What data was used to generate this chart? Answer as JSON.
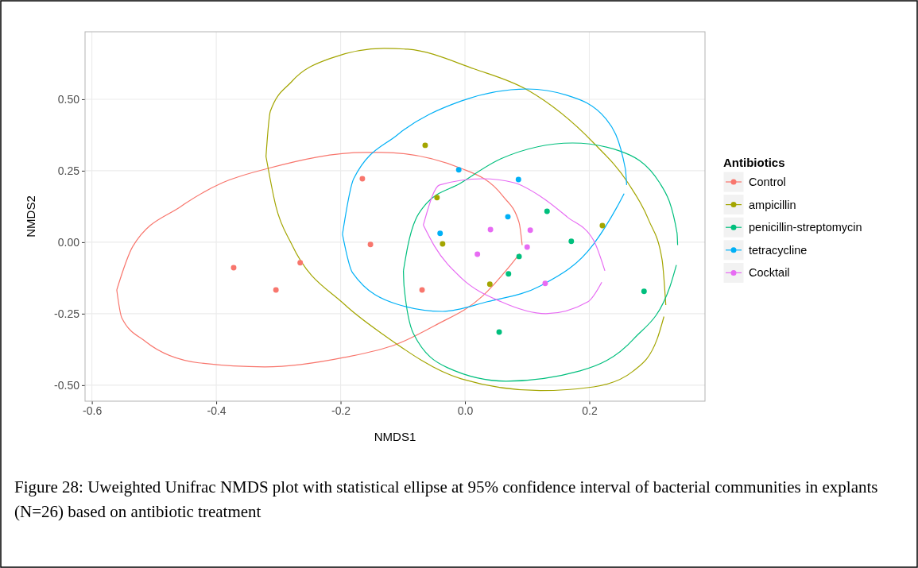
{
  "chart_data": {
    "type": "scatter",
    "xlabel": "NMDS1",
    "ylabel": "NMDS2",
    "legend_title": "Antibiotics",
    "legend": "right",
    "grid": true,
    "marker": "circle",
    "xlim": [
      -0.611,
      0.386
    ],
    "ylim": [
      -0.556,
      0.736
    ],
    "xticks": [
      -0.6,
      -0.4,
      -0.2,
      {
        "value": 0,
        "label": "0.0"
      },
      0.2
    ],
    "yticks": [
      {
        "value": -0.5,
        "label": "-0.50"
      },
      {
        "value": -0.25,
        "label": "-0.25"
      },
      {
        "value": 0,
        "label": "0.00"
      },
      {
        "value": 0.25,
        "label": "0.25"
      },
      {
        "value": 0.5,
        "label": "0.50"
      }
    ],
    "annotations": [
      "Figure 28: Uweighted Unifrac NMDS plot with statistical ellipse at 95% confidence interval of bacterial communities in explants  (N=26) based on antibiotic treatment"
    ],
    "series": [
      {
        "type": "line",
        "marker": "none",
        "color": "#f8766d",
        "x": [
          -0.56,
          -0.534,
          -0.457,
          -0.39,
          -0.317,
          -0.16,
          -0.134,
          -0.006,
          0.061,
          0.087,
          0.092
        ],
        "values": [
          -0.167,
          -0.014,
          0.125,
          0.208,
          0.258,
          0.314,
          0.314,
          0.258,
          0.161,
          0.069,
          -0.01
        ]
      },
      {
        "type": "line",
        "marker": "none",
        "color": "#f8766d",
        "x": [
          -0.56,
          -0.552,
          -0.514,
          -0.428,
          -0.322,
          -0.194,
          -0.109,
          -0.049,
          0.028,
          0.07,
          0.088
        ],
        "values": [
          -0.167,
          -0.264,
          -0.347,
          -0.422,
          -0.436,
          -0.403,
          -0.356,
          -0.292,
          -0.189,
          -0.089,
          -0.04
        ]
      },
      {
        "type": "line",
        "marker": "none",
        "color": "#a3a500",
        "x": [
          -0.32,
          -0.313,
          -0.279,
          -0.215,
          -0.13,
          -0.092,
          0.015,
          0.1,
          0.207,
          0.262,
          0.296,
          0.317,
          0.323
        ],
        "values": [
          0.3,
          0.458,
          0.561,
          0.644,
          0.678,
          0.675,
          0.606,
          0.533,
          0.347,
          0.208,
          0.075,
          -0.061,
          -0.22
        ]
      },
      {
        "type": "line",
        "marker": "none",
        "color": "#a3a500",
        "x": [
          -0.32,
          -0.304,
          -0.279,
          -0.194,
          -0.134,
          -0.006,
          0.121,
          0.207,
          0.271,
          0.309,
          0.32
        ],
        "values": [
          0.3,
          0.125,
          -0.006,
          -0.217,
          -0.319,
          -0.478,
          -0.519,
          -0.506,
          -0.45,
          -0.339,
          -0.26
        ]
      },
      {
        "type": "line",
        "marker": "none",
        "color": "#00bf7d",
        "x": [
          -0.099,
          -0.092,
          -0.066,
          -0.006,
          0.058,
          0.173,
          0.249,
          0.313,
          0.341,
          0.342
        ],
        "values": [
          -0.1,
          -0.014,
          0.125,
          0.208,
          0.292,
          0.347,
          0.319,
          0.208,
          0.033,
          -0.01
        ]
      },
      {
        "type": "line",
        "marker": "none",
        "color": "#00bf7d",
        "x": [
          -0.099,
          -0.098,
          -0.083,
          -0.028,
          0.066,
          0.185,
          0.271,
          0.33,
          0.34
        ],
        "values": [
          -0.1,
          -0.153,
          -0.319,
          -0.439,
          -0.486,
          -0.45,
          -0.339,
          -0.153,
          -0.08
        ]
      },
      {
        "type": "line",
        "marker": "none",
        "color": "#00b0f6",
        "x": [
          -0.197,
          -0.179,
          -0.109,
          -0.006,
          0.1,
          0.164,
          0.227,
          0.258,
          0.26
        ],
        "values": [
          0.028,
          0.222,
          0.375,
          0.494,
          0.536,
          0.514,
          0.431,
          0.256,
          0.2
        ]
      },
      {
        "type": "line",
        "marker": "none",
        "color": "#00b0f6",
        "x": [
          -0.197,
          -0.181,
          -0.109,
          -0.036,
          0.036,
          0.121,
          0.207,
          0.245,
          0.256
        ],
        "values": [
          0.028,
          -0.106,
          -0.217,
          -0.242,
          -0.208,
          -0.153,
          -0.006,
          0.125,
          0.17
        ]
      },
      {
        "type": "line",
        "marker": "none",
        "color": "#e76bf3",
        "x": [
          -0.067,
          -0.041,
          0.028,
          0.079,
          0.121,
          0.164,
          0.207,
          0.225
        ],
        "values": [
          0.06,
          0.2,
          0.222,
          0.208,
          0.161,
          0.089,
          0.006,
          -0.1
        ]
      },
      {
        "type": "line",
        "marker": "none",
        "color": "#e76bf3",
        "x": [
          -0.067,
          -0.049,
          -0.006,
          0.058,
          0.13,
          0.198,
          0.22
        ],
        "values": [
          0.06,
          -0.014,
          -0.125,
          -0.208,
          -0.25,
          -0.208,
          -0.14
        ]
      },
      {
        "name": "Control",
        "color": "#f8766d",
        "x": [
          -0.372,
          -0.304,
          -0.265,
          -0.165,
          -0.152,
          -0.069
        ],
        "values": [
          -0.089,
          -0.167,
          -0.072,
          0.222,
          -0.008,
          -0.167
        ]
      },
      {
        "name": "ampicillin",
        "color": "#a3a500",
        "x": [
          -0.064,
          -0.045,
          -0.036,
          0.04,
          0.221
        ],
        "values": [
          0.339,
          0.156,
          -0.006,
          -0.147,
          0.058
        ]
      },
      {
        "name": "penicillin-streptomycin",
        "color": "#00bf7d",
        "x": [
          0.132,
          0.171,
          0.087,
          0.07,
          0.055,
          0.288
        ],
        "values": [
          0.108,
          0.003,
          -0.05,
          -0.111,
          -0.314,
          -0.172
        ]
      },
      {
        "name": "tetracycline",
        "color": "#00b0f6",
        "x": [
          -0.01,
          0.086,
          0.069,
          -0.04
        ],
        "values": [
          0.253,
          0.219,
          0.089,
          0.031
        ]
      },
      {
        "name": "Cocktail",
        "color": "#e76bf3",
        "x": [
          0.041,
          0.105,
          0.1,
          0.02,
          0.129
        ],
        "values": [
          0.044,
          0.042,
          -0.017,
          -0.042,
          -0.144
        ]
      }
    ]
  }
}
